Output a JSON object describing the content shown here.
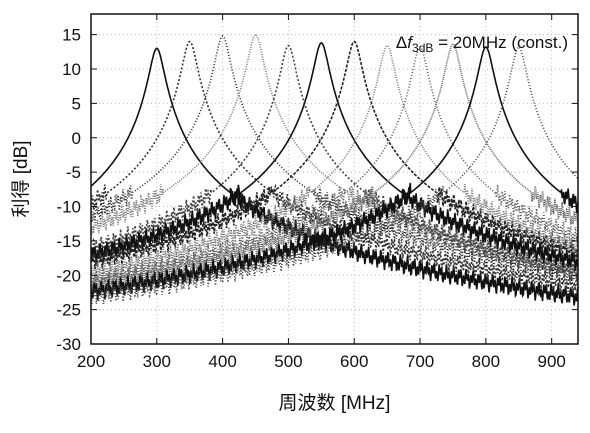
{
  "chart_data": {
    "type": "line",
    "title": "",
    "xlabel": "周波数 [MHz]",
    "ylabel": "利得 [dB]",
    "xlim": [
      200,
      940
    ],
    "ylim": [
      -30,
      18
    ],
    "xticks": [
      200,
      300,
      400,
      500,
      600,
      700,
      800,
      900
    ],
    "yticks": [
      -30,
      -25,
      -20,
      -15,
      -10,
      -5,
      0,
      5,
      10,
      15
    ],
    "grid": true,
    "grid_style": "dotted",
    "annotation": {
      "delta": "Δ",
      "f": "f",
      "sub": "3dB",
      "rest": " = 20MHz (const.)"
    },
    "bandwidth_3db_mhz": 20,
    "series": [
      {
        "center": 300,
        "peak": 13,
        "color": "#111111",
        "dash": ""
      },
      {
        "center": 350,
        "peak": 14,
        "color": "#333333",
        "dash": "2,2"
      },
      {
        "center": 400,
        "peak": 14.8,
        "color": "#222222",
        "dash": "1,2"
      },
      {
        "center": 450,
        "peak": 15,
        "color": "#777777",
        "dash": "1,1.5"
      },
      {
        "center": 500,
        "peak": 13.4,
        "color": "#444444",
        "dash": "2,2"
      },
      {
        "center": 550,
        "peak": 13.8,
        "color": "#111111",
        "dash": ""
      },
      {
        "center": 600,
        "peak": 14,
        "color": "#222222",
        "dash": "3,1.5"
      },
      {
        "center": 650,
        "peak": 13.4,
        "color": "#777777",
        "dash": "1,1.5"
      },
      {
        "center": 700,
        "peak": 13.2,
        "color": "#555555",
        "dash": "1,2"
      },
      {
        "center": 750,
        "peak": 13.6,
        "color": "#666666",
        "dash": "1,1"
      },
      {
        "center": 800,
        "peak": 13.2,
        "color": "#111111",
        "dash": ""
      },
      {
        "center": 850,
        "peak": 13.2,
        "color": "#444444",
        "dash": "1,2"
      }
    ]
  }
}
